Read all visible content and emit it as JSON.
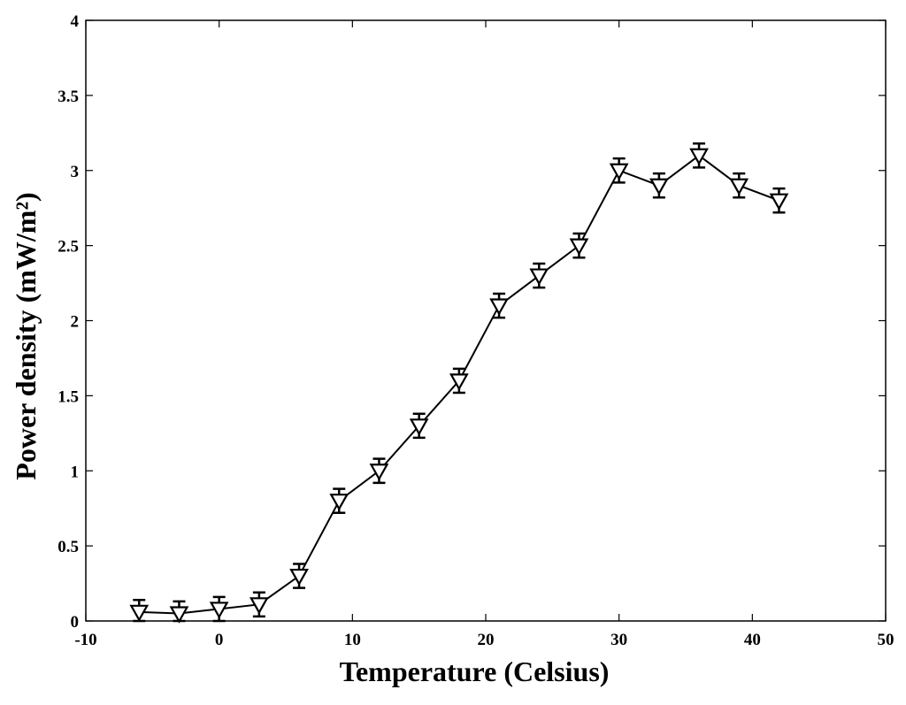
{
  "chart_data": {
    "type": "line",
    "title": "",
    "xlabel": "Temperature (Celsius)",
    "ylabel": "Power density (mW/m²)",
    "xlim": [
      -10,
      50
    ],
    "ylim": [
      0,
      4
    ],
    "x_ticks": [
      -10,
      0,
      10,
      20,
      30,
      40,
      50
    ],
    "y_ticks": [
      0,
      0.5,
      1,
      1.5,
      2,
      2.5,
      3,
      3.5,
      4
    ],
    "grid": false,
    "legend": "none",
    "marker": "down-triangle",
    "line_color": "#000000",
    "series": [
      {
        "x": [
          -6,
          -3,
          0,
          3,
          6,
          9,
          12,
          15,
          18,
          21,
          24,
          27,
          30,
          33,
          36,
          39,
          42
        ],
        "y": [
          0.06,
          0.05,
          0.08,
          0.11,
          0.3,
          0.8,
          1.0,
          1.3,
          1.6,
          2.1,
          2.3,
          2.5,
          3.0,
          2.9,
          3.1,
          2.9,
          2.8
        ],
        "error": [
          0.08,
          0.08,
          0.08,
          0.08,
          0.08,
          0.08,
          0.08,
          0.08,
          0.08,
          0.08,
          0.08,
          0.08,
          0.08,
          0.08,
          0.08,
          0.08,
          0.08
        ]
      }
    ]
  }
}
